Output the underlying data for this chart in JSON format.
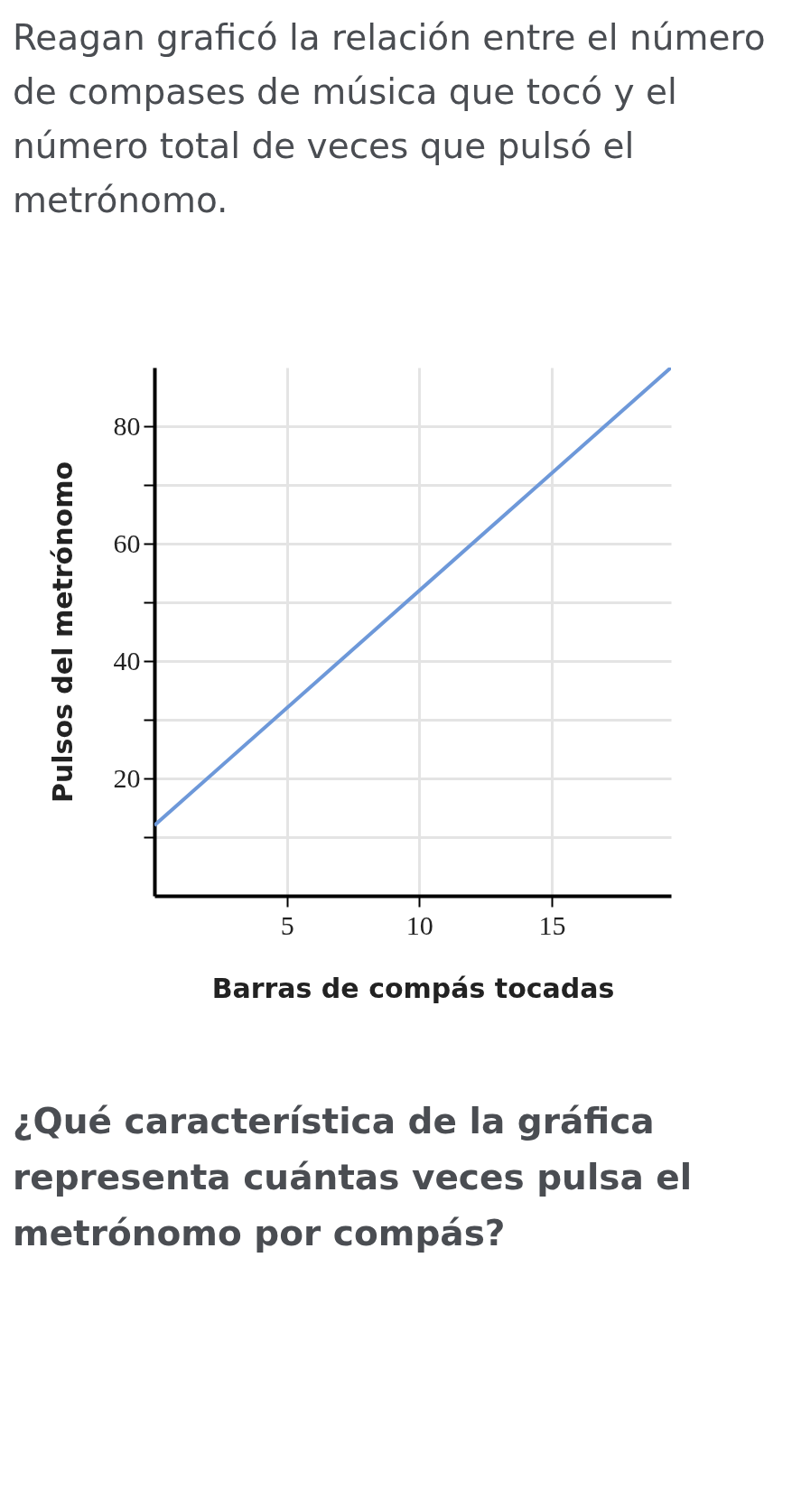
{
  "chart_data": {
    "type": "line",
    "title": "Reagan graficó la relación entre el número de compases de música que tocó y el número total de veces que pulsó el metrónomo.",
    "xlabel": "Barras de compás tocadas",
    "ylabel": "Pulsos del metrónomo",
    "annotations": [
      "¿Qué característica de la gráfica representa cuántas veces pulsa el metrónomo por compás?"
    ],
    "x": [
      0,
      19.5
    ],
    "series": [
      {
        "color": "#6d98d9",
        "values": [
          12,
          90
        ]
      }
    ],
    "xlim": [
      0,
      19.5
    ],
    "ylim": [
      0,
      90
    ],
    "xticks": [
      5,
      10,
      15
    ],
    "yticks": [
      {
        "value": 10,
        "label": null
      },
      20,
      {
        "value": 30,
        "label": null
      },
      40,
      {
        "value": 50,
        "label": null
      },
      60,
      {
        "value": 70,
        "label": null
      },
      80
    ],
    "grid": true,
    "marker": "none",
    "line_style": "solid"
  }
}
